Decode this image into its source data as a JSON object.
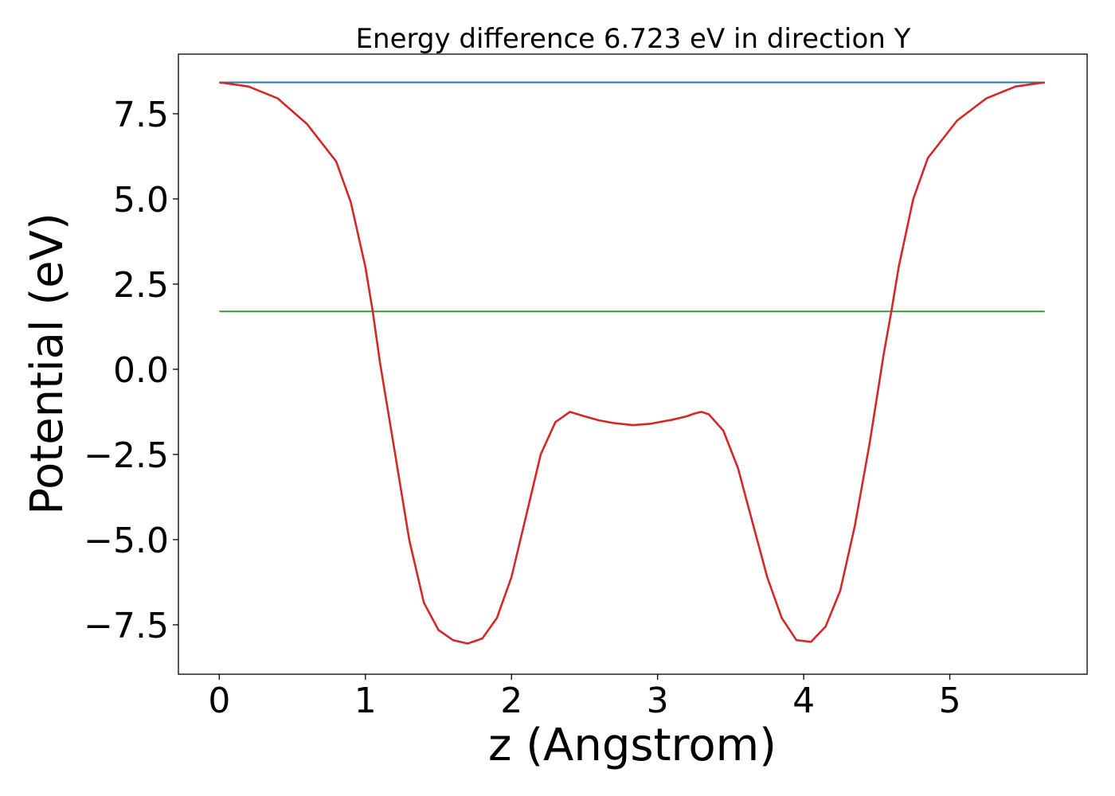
{
  "chart_data": {
    "type": "line",
    "title": "Energy difference 6.723 eV in direction Y",
    "xlabel": "z (Angstrom)",
    "ylabel": "Potential (eV)",
    "xlim": [
      -0.28,
      5.94
    ],
    "ylim": [
      -8.95,
      9.25
    ],
    "xticks": [
      0,
      1,
      2,
      3,
      4,
      5
    ],
    "xtick_labels": [
      "0",
      "1",
      "2",
      "3",
      "4",
      "5"
    ],
    "yticks": [
      -7.5,
      -5.0,
      -2.5,
      0.0,
      2.5,
      5.0,
      7.5
    ],
    "ytick_labels": [
      "−7.5",
      "−5.0",
      "−2.5",
      "0.0",
      "2.5",
      "5.0",
      "7.5"
    ],
    "grid": false,
    "series": [
      {
        "color": "#1f77b4",
        "x": [
          0,
          5.65
        ],
        "y": [
          8.42,
          8.42
        ]
      },
      {
        "color": "#2ca02c",
        "x": [
          0,
          5.65
        ],
        "y": [
          1.7,
          1.7
        ]
      },
      {
        "color": "#d62728",
        "x": [
          0,
          0.2,
          0.4,
          0.6,
          0.8,
          0.9,
          1.0,
          1.05,
          1.1,
          1.2,
          1.3,
          1.4,
          1.5,
          1.6,
          1.7,
          1.8,
          1.9,
          2.0,
          2.1,
          2.2,
          2.3,
          2.4,
          2.5,
          2.6,
          2.7,
          2.83,
          2.95,
          3.1,
          3.2,
          3.25,
          3.3,
          3.35,
          3.45,
          3.55,
          3.65,
          3.75,
          3.85,
          3.95,
          4.05,
          4.15,
          4.25,
          4.35,
          4.45,
          4.55,
          4.6,
          4.65,
          4.75,
          4.85,
          5.05,
          5.25,
          5.45,
          5.65
        ],
        "y": [
          8.42,
          8.3,
          7.95,
          7.2,
          6.1,
          4.9,
          3.0,
          1.7,
          0.2,
          -2.4,
          -5.0,
          -6.85,
          -7.65,
          -7.95,
          -8.05,
          -7.9,
          -7.3,
          -6.1,
          -4.3,
          -2.5,
          -1.55,
          -1.25,
          -1.38,
          -1.5,
          -1.58,
          -1.64,
          -1.6,
          -1.48,
          -1.38,
          -1.3,
          -1.25,
          -1.32,
          -1.8,
          -2.9,
          -4.5,
          -6.1,
          -7.3,
          -7.95,
          -8.0,
          -7.55,
          -6.5,
          -4.6,
          -2.2,
          0.5,
          1.7,
          3.0,
          5.0,
          6.2,
          7.3,
          7.95,
          8.3,
          8.42
        ]
      }
    ]
  }
}
